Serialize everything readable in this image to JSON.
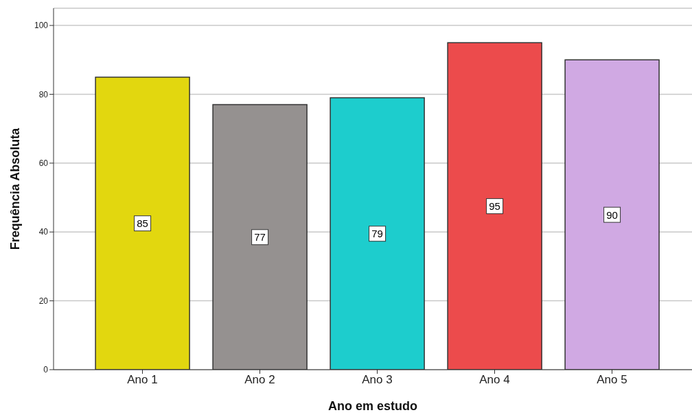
{
  "chart_data": {
    "type": "bar",
    "xlabel": "Ano em estudo",
    "ylabel": "Frequência Absoluta",
    "categories": [
      "Ano 1",
      "Ano 2",
      "Ano 3",
      "Ano 4",
      "Ano 5"
    ],
    "values": [
      85,
      77,
      79,
      95,
      90
    ],
    "colors": [
      "#e2d70f",
      "#959190",
      "#1dcdcd",
      "#ec4b4c",
      "#d0a9e3"
    ],
    "ylim": [
      0,
      105
    ],
    "yticks": [
      0,
      20,
      40,
      60,
      80,
      100
    ],
    "grid": "y",
    "data_labels": true
  }
}
